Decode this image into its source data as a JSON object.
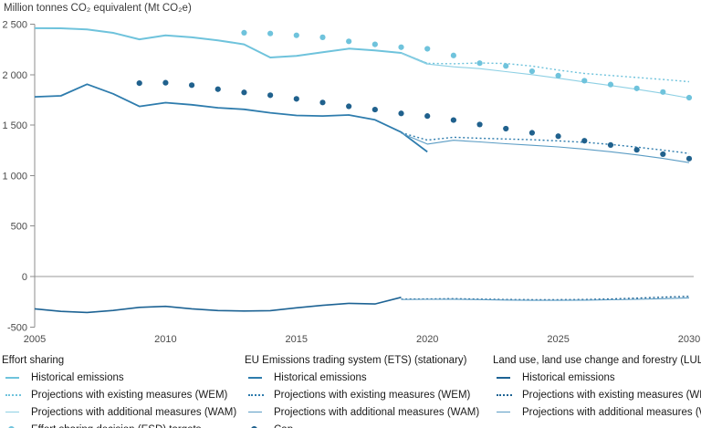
{
  "chart_data": {
    "type": "line",
    "title": "Million tonnes CO₂ equivalent (Mt CO₂e)",
    "xlabel": "",
    "ylabel": "Million tonnes CO₂ equivalent (Mt CO₂e)",
    "xlim": [
      2005,
      2030
    ],
    "ylim": [
      -500,
      2500
    ],
    "grid": "zero line only",
    "legend_position": "bottom, three columns",
    "x_ticks": [
      {
        "value": 2005,
        "label": "2005"
      },
      {
        "value": 2010,
        "label": "2010"
      },
      {
        "value": 2015,
        "label": "2015"
      },
      {
        "value": 2020,
        "label": "2020"
      },
      {
        "value": 2025,
        "label": "2025"
      },
      {
        "value": 2030,
        "label": "2030"
      }
    ],
    "y_ticks": [
      {
        "value": 2500,
        "label": "2 500"
      },
      {
        "value": 2000,
        "label": "2 000"
      },
      {
        "value": 1500,
        "label": "1 500"
      },
      {
        "value": 1000,
        "label": "1 000"
      },
      {
        "value": 500,
        "label": "500"
      },
      {
        "value": 0,
        "label": "0"
      },
      {
        "value": -500,
        "label": "-500"
      }
    ],
    "series": [
      {
        "id": "es-historical",
        "group": "Effort sharing",
        "name": "Historical emissions",
        "style": "solid",
        "width": 2,
        "color": "#6fc3dc",
        "points": [
          [
            2005,
            2460
          ],
          [
            2006,
            2459
          ],
          [
            2007,
            2448
          ],
          [
            2008,
            2414
          ],
          [
            2009,
            2350
          ],
          [
            2010,
            2390
          ],
          [
            2011,
            2370
          ],
          [
            2012,
            2340
          ],
          [
            2013,
            2300
          ],
          [
            2014,
            2170
          ],
          [
            2015,
            2185
          ],
          [
            2016,
            2222
          ],
          [
            2017,
            2258
          ],
          [
            2018,
            2240
          ],
          [
            2019,
            2215
          ],
          [
            2020,
            2108
          ]
        ]
      },
      {
        "id": "es-wem",
        "group": "Effort sharing",
        "name": "Projections with existing measures (WEM)",
        "style": "dotted",
        "width": 1.4,
        "color": "#6fc3dc",
        "points": [
          [
            2019,
            2215
          ],
          [
            2020,
            2112
          ],
          [
            2021,
            2108
          ],
          [
            2022,
            2116
          ],
          [
            2023,
            2110
          ],
          [
            2024,
            2085
          ],
          [
            2025,
            2045
          ],
          [
            2026,
            2012
          ],
          [
            2027,
            1992
          ],
          [
            2028,
            1972
          ],
          [
            2029,
            1952
          ],
          [
            2030,
            1930
          ]
        ]
      },
      {
        "id": "es-wam",
        "group": "Effort sharing",
        "name": "Projections with additional measures (WAM)",
        "style": "solid",
        "width": 1.1,
        "color": "#8ed0e4",
        "points": [
          [
            2019,
            2212
          ],
          [
            2020,
            2105
          ],
          [
            2021,
            2078
          ],
          [
            2022,
            2060
          ],
          [
            2023,
            2030
          ],
          [
            2024,
            2000
          ],
          [
            2025,
            1965
          ],
          [
            2026,
            1928
          ],
          [
            2027,
            1892
          ],
          [
            2028,
            1855
          ],
          [
            2029,
            1815
          ],
          [
            2030,
            1768
          ]
        ]
      },
      {
        "id": "es-targets",
        "group": "Effort sharing",
        "name": "Effort sharing decision (ESD) targets",
        "style": "dots",
        "radius": 3.1,
        "color": "#6fc3dc",
        "points": [
          [
            2013,
            2415
          ],
          [
            2014,
            2408
          ],
          [
            2015,
            2390
          ],
          [
            2016,
            2370
          ],
          [
            2017,
            2330
          ],
          [
            2018,
            2300
          ],
          [
            2019,
            2272
          ],
          [
            2020,
            2256
          ],
          [
            2021,
            2190
          ],
          [
            2022,
            2114
          ],
          [
            2023,
            2086
          ],
          [
            2024,
            2034
          ],
          [
            2025,
            1990
          ],
          [
            2026,
            1940
          ],
          [
            2027,
            1902
          ],
          [
            2028,
            1864
          ],
          [
            2029,
            1828
          ],
          [
            2030,
            1772
          ]
        ]
      },
      {
        "id": "ets-historical",
        "group": "EU Emissions trading system (ETS) (stationary)",
        "name": "Historical emissions",
        "style": "solid",
        "width": 1.8,
        "color": "#2e7cad",
        "points": [
          [
            2005,
            1780
          ],
          [
            2006,
            1790
          ],
          [
            2007,
            1905
          ],
          [
            2008,
            1810
          ],
          [
            2009,
            1685
          ],
          [
            2010,
            1722
          ],
          [
            2011,
            1702
          ],
          [
            2012,
            1672
          ],
          [
            2013,
            1656
          ],
          [
            2014,
            1622
          ],
          [
            2015,
            1596
          ],
          [
            2016,
            1590
          ],
          [
            2017,
            1600
          ],
          [
            2018,
            1552
          ],
          [
            2019,
            1430
          ],
          [
            2020,
            1235
          ]
        ]
      },
      {
        "id": "ets-wem",
        "group": "EU Emissions trading system (ETS) (stationary)",
        "name": "Projections with existing measures (WEM)",
        "style": "dotted",
        "width": 1.4,
        "color": "#2e7cad",
        "points": [
          [
            2019,
            1425
          ],
          [
            2020,
            1352
          ],
          [
            2021,
            1380
          ],
          [
            2022,
            1370
          ],
          [
            2023,
            1363
          ],
          [
            2024,
            1355
          ],
          [
            2025,
            1344
          ],
          [
            2026,
            1330
          ],
          [
            2027,
            1308
          ],
          [
            2028,
            1282
          ],
          [
            2029,
            1252
          ],
          [
            2030,
            1220
          ]
        ]
      },
      {
        "id": "ets-wam",
        "group": "EU Emissions trading system (ETS) (stationary)",
        "name": "Projections with additional measures (WAM)",
        "style": "solid",
        "width": 1.1,
        "color": "#5b9cc4",
        "points": [
          [
            2019,
            1420
          ],
          [
            2020,
            1312
          ],
          [
            2021,
            1350
          ],
          [
            2022,
            1334
          ],
          [
            2023,
            1316
          ],
          [
            2024,
            1300
          ],
          [
            2025,
            1284
          ],
          [
            2026,
            1262
          ],
          [
            2027,
            1236
          ],
          [
            2028,
            1205
          ],
          [
            2029,
            1170
          ],
          [
            2030,
            1128
          ]
        ]
      },
      {
        "id": "ets-cap",
        "group": "EU Emissions trading system (ETS) (stationary)",
        "name": "Cap",
        "style": "dots",
        "radius": 3.1,
        "color": "#20618d",
        "points": [
          [
            2009,
            1916
          ],
          [
            2010,
            1920
          ],
          [
            2011,
            1896
          ],
          [
            2012,
            1856
          ],
          [
            2013,
            1824
          ],
          [
            2014,
            1796
          ],
          [
            2015,
            1760
          ],
          [
            2016,
            1724
          ],
          [
            2017,
            1686
          ],
          [
            2018,
            1654
          ],
          [
            2019,
            1616
          ],
          [
            2020,
            1590
          ],
          [
            2021,
            1550
          ],
          [
            2022,
            1506
          ],
          [
            2023,
            1465
          ],
          [
            2024,
            1424
          ],
          [
            2025,
            1390
          ],
          [
            2026,
            1345
          ],
          [
            2027,
            1303
          ],
          [
            2028,
            1255
          ],
          [
            2029,
            1212
          ],
          [
            2030,
            1168
          ]
        ]
      },
      {
        "id": "lulucf-historical",
        "group": "Land use, land use change and forestry (LULUCF)",
        "name": "Historical emissions",
        "style": "solid",
        "width": 1.6,
        "color": "#1d6394",
        "points": [
          [
            2005,
            -320
          ],
          [
            2006,
            -345
          ],
          [
            2007,
            -356
          ],
          [
            2008,
            -336
          ],
          [
            2009,
            -306
          ],
          [
            2010,
            -296
          ],
          [
            2011,
            -320
          ],
          [
            2012,
            -337
          ],
          [
            2013,
            -342
          ],
          [
            2014,
            -338
          ],
          [
            2015,
            -310
          ],
          [
            2016,
            -286
          ],
          [
            2017,
            -266
          ],
          [
            2018,
            -272
          ],
          [
            2019,
            -206
          ]
        ]
      },
      {
        "id": "lulucf-wem",
        "group": "Land use, land use change and forestry (LULUCF)",
        "name": "Projections with existing measures (WEM)",
        "style": "dotted",
        "width": 1.4,
        "color": "#1d6394",
        "points": [
          [
            2019,
            -224
          ],
          [
            2020,
            -222
          ],
          [
            2021,
            -220
          ],
          [
            2022,
            -224
          ],
          [
            2023,
            -228
          ],
          [
            2024,
            -230
          ],
          [
            2025,
            -230
          ],
          [
            2026,
            -228
          ],
          [
            2027,
            -222
          ],
          [
            2028,
            -214
          ],
          [
            2029,
            -204
          ],
          [
            2030,
            -196
          ]
        ]
      },
      {
        "id": "lulucf-wam",
        "group": "Land use, land use change and forestry (LULUCF)",
        "name": "Projections with additional measures (WAM)",
        "style": "solid",
        "width": 1.1,
        "color": "#5b9cc4",
        "points": [
          [
            2019,
            -228
          ],
          [
            2020,
            -226
          ],
          [
            2021,
            -225
          ],
          [
            2022,
            -229
          ],
          [
            2023,
            -233
          ],
          [
            2024,
            -236
          ],
          [
            2025,
            -236
          ],
          [
            2026,
            -234
          ],
          [
            2027,
            -231
          ],
          [
            2028,
            -226
          ],
          [
            2029,
            -220
          ],
          [
            2030,
            -212
          ]
        ]
      }
    ]
  },
  "legend": {
    "groups": [
      {
        "heading": "Effort sharing",
        "items": [
          {
            "label": "Historical emissions",
            "swatch": "line",
            "color": "#6fc3dc"
          },
          {
            "label": "Projections with existing measures (WEM)",
            "swatch": "dotted",
            "color": "#6fc3dc"
          },
          {
            "label": "Projections with additional measures (WAM)",
            "swatch": "thinline",
            "color": "#8ed0e4"
          },
          {
            "label": "Effort sharing decision (ESD) targets",
            "swatch": "dot",
            "color": "#6fc3dc"
          }
        ]
      },
      {
        "heading": "EU Emissions trading system (ETS) (stationary)",
        "items": [
          {
            "label": "Historical emissions",
            "swatch": "line",
            "color": "#2e7cad"
          },
          {
            "label": "Projections with existing measures (WEM)",
            "swatch": "dotted",
            "color": "#2e7cad"
          },
          {
            "label": "Projections with additional measures (WAM)",
            "swatch": "thinline",
            "color": "#5b9cc4"
          },
          {
            "label": "Cap",
            "swatch": "dot",
            "color": "#20618d"
          }
        ]
      },
      {
        "heading": "Land use, land use change and forestry (LULUCF)",
        "items": [
          {
            "label": "Historical emissions",
            "swatch": "line",
            "color": "#1d6394"
          },
          {
            "label": "Projections with existing measures (WEM)",
            "swatch": "dotted",
            "color": "#1d6394"
          },
          {
            "label": "Projections with additional measures (WAM)",
            "swatch": "thinline",
            "color": "#5b9cc4"
          }
        ]
      }
    ]
  },
  "colors": {
    "effort_sharing": "#6fc3dc",
    "ets": "#2e7cad",
    "ets_cap_dot": "#20618d",
    "lulucf": "#1d6394",
    "axis": "#8c8c8c",
    "zero_line": "#9a9a9a",
    "tick_text": "#4a4a4a"
  }
}
